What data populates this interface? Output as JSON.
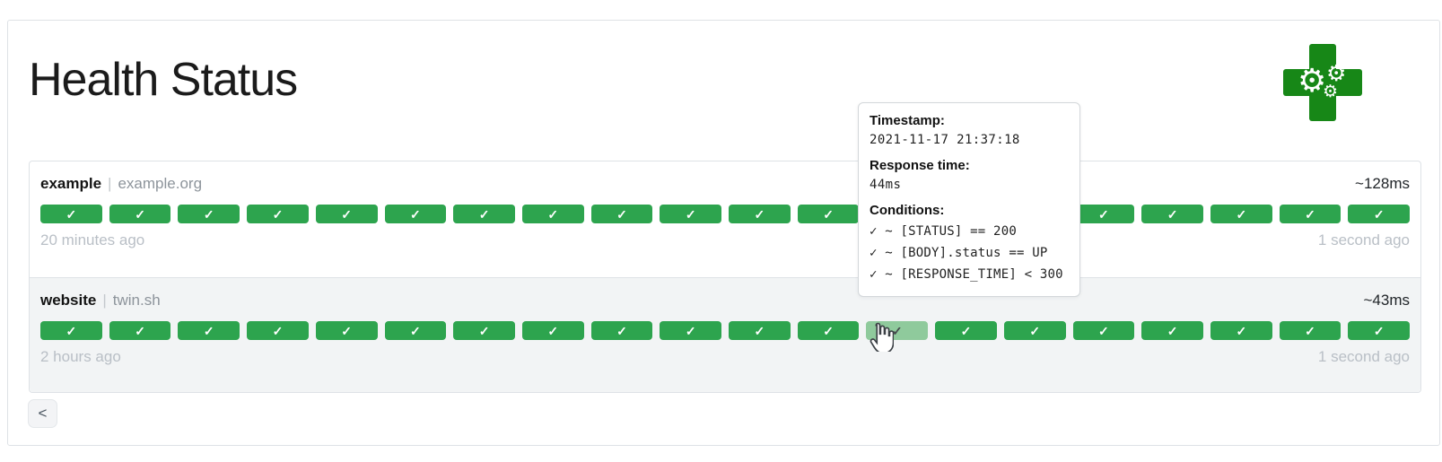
{
  "header": {
    "title": "Health Status"
  },
  "logo": {
    "name": "health-cross-gears",
    "gear_glyph": "⚙"
  },
  "services": [
    {
      "name": "example",
      "separator": "|",
      "host": "example.org",
      "avg_response_time": "~128ms",
      "oldest_result": "20 minutes ago",
      "newest_result": "1 second ago",
      "hovered_index": null,
      "results": [
        "up",
        "up",
        "up",
        "up",
        "up",
        "up",
        "up",
        "up",
        "up",
        "up",
        "up",
        "up",
        "up",
        "up",
        "up",
        "up",
        "up",
        "up",
        "up",
        "up"
      ]
    },
    {
      "name": "website",
      "separator": "|",
      "host": "twin.sh",
      "avg_response_time": "~43ms",
      "oldest_result": "2 hours ago",
      "newest_result": "1 second ago",
      "hovered_index": 12,
      "results": [
        "up",
        "up",
        "up",
        "up",
        "up",
        "up",
        "up",
        "up",
        "up",
        "up",
        "up",
        "up",
        "up",
        "up",
        "up",
        "up",
        "up",
        "up",
        "up",
        "up"
      ]
    }
  ],
  "result_icon": {
    "up_glyph": "✓"
  },
  "tooltip": {
    "timestamp_label": "Timestamp:",
    "timestamp": "2021-11-17 21:37:18",
    "response_time_label": "Response time:",
    "response_time": "44ms",
    "conditions_label": "Conditions:",
    "conditions": [
      "✓ ~ [STATUS] == 200",
      "✓ ~ [BODY].status == UP",
      "✓ ~ [RESPONSE_TIME] < 300"
    ]
  },
  "pagination": {
    "previous_label": "<"
  },
  "colors": {
    "success": "#2da44e",
    "success_hover": "#8fca9c",
    "row_alt_background": "#f2f4f5",
    "cross_green": "#178717"
  }
}
